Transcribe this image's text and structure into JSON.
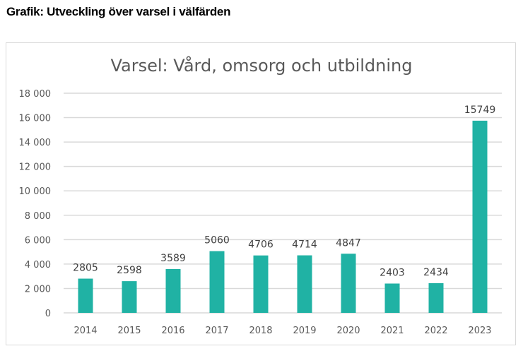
{
  "heading": "Grafik: Utveckling över varsel i välfärden",
  "chart_data": {
    "type": "bar",
    "title": "Varsel: Vård, omsorg och utbildning",
    "categories": [
      "2014",
      "2015",
      "2016",
      "2017",
      "2018",
      "2019",
      "2020",
      "2021",
      "2022",
      "2023"
    ],
    "values": [
      2805,
      2598,
      3589,
      5060,
      4706,
      4714,
      4847,
      2403,
      2434,
      15749
    ],
    "data_labels": [
      "2805",
      "2598",
      "3589",
      "5060",
      "4706",
      "4714",
      "4847",
      "2403",
      "2434",
      "15749"
    ],
    "ylim": [
      0,
      18000
    ],
    "yticks": [
      0,
      2000,
      4000,
      6000,
      8000,
      10000,
      12000,
      14000,
      16000,
      18000
    ],
    "ytick_labels": [
      "0",
      "2 000",
      "4 000",
      "6 000",
      "8 000",
      "10 000",
      "12 000",
      "14 000",
      "16 000",
      "18 000"
    ],
    "xlabel": "",
    "ylabel": "",
    "grid": true,
    "legend": "none",
    "bar_color": "#20b2a4"
  }
}
